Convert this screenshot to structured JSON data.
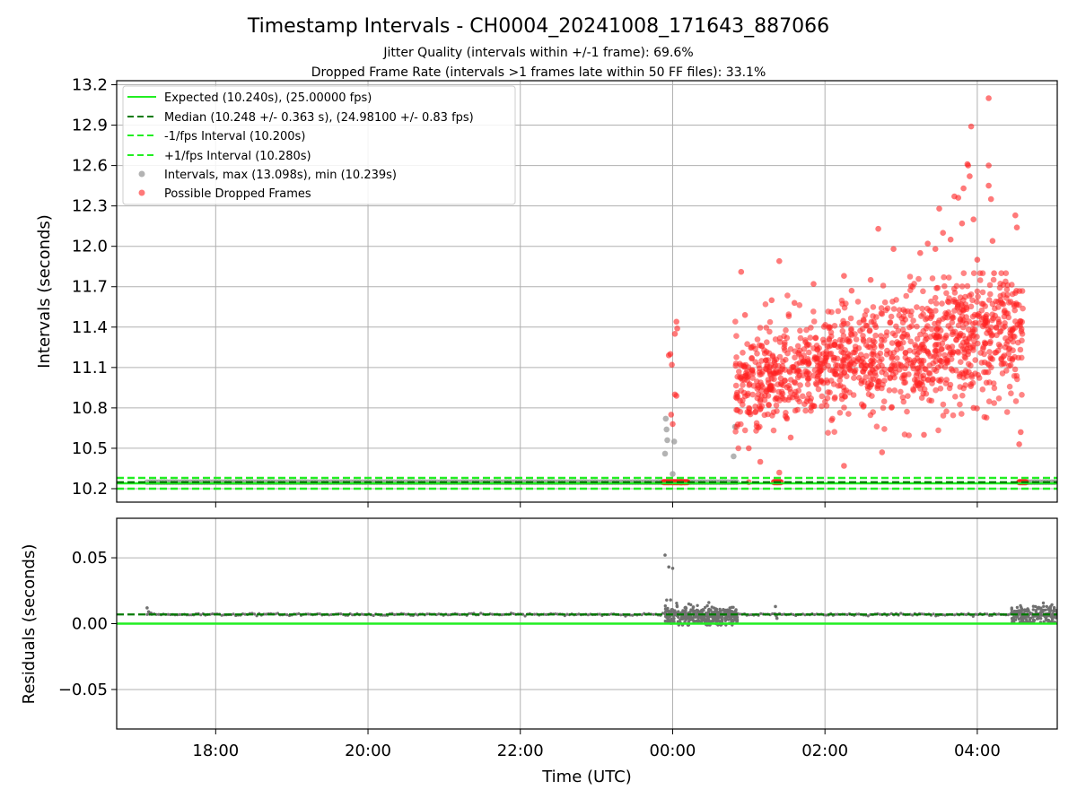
{
  "title": "Timestamp Intervals - CH0004_20241008_171643_887066",
  "subtitle_1": "Jitter Quality (intervals within +/-1 frame): 69.6%",
  "subtitle_2": "Dropped Frame Rate (intervals >1 frames late within 50 FF files): 33.1%",
  "colors": {
    "expected": "#22ee22",
    "median": "#007a00",
    "bound": "#22ee22",
    "interval": "#9a9a9a",
    "dropped": "#ff2020",
    "residual": "#707070"
  },
  "chart_data": [
    {
      "type": "scatter",
      "ylabel": "Intervals (seconds)",
      "xlim_hours": [
        -7.3,
        5.05
      ],
      "ylim": [
        10.1,
        13.23
      ],
      "yticks": [
        "10.2",
        "10.5",
        "10.8",
        "11.1",
        "11.4",
        "11.7",
        "12.0",
        "12.3",
        "12.6",
        "12.9",
        "13.2"
      ],
      "grid": true,
      "legend_position": "top-left",
      "legend": [
        "Expected (10.240s), (25.00000 fps)",
        "Median (10.248 +/- 0.363 s), (24.98100 +/- 0.83 fps)",
        "-1/fps Interval (10.200s)",
        "+1/fps Interval (10.280s)",
        "Intervals, max (13.098s), min (10.239s)",
        "Possible Dropped Frames"
      ],
      "reference_lines": {
        "expected": 10.24,
        "median": 10.248,
        "lower": 10.2,
        "upper": 10.28
      },
      "series": [
        {
          "name": "Intervals, max (13.098s), min (10.239s)",
          "note_x_hours": "hours relative to 00:00 UTC",
          "segments": [
            {
              "x_start": -6.9,
              "x_end": -0.12,
              "y": 10.248
            },
            {
              "x_start": 0.2,
              "x_end": 0.85,
              "y": 10.248
            },
            {
              "x_start": 4.6,
              "x_end": 5.05,
              "y": 10.248
            }
          ],
          "points": [
            {
              "x": -0.09,
              "y": 10.72
            },
            {
              "x": -0.08,
              "y": 10.64
            },
            {
              "x": -0.07,
              "y": 10.56
            },
            {
              "x": -0.1,
              "y": 10.46
            },
            {
              "x": 0.0,
              "y": 10.31
            },
            {
              "x": 0.02,
              "y": 10.55
            },
            {
              "x": 0.8,
              "y": 10.44
            },
            {
              "x": 0.82,
              "y": 10.66
            }
          ]
        },
        {
          "name": "Possible Dropped Frames",
          "points": [
            {
              "x": -0.05,
              "y": 11.19
            },
            {
              "x": -0.03,
              "y": 11.2
            },
            {
              "x": -0.01,
              "y": 11.12
            },
            {
              "x": 0.03,
              "y": 11.35
            },
            {
              "x": 0.05,
              "y": 11.44
            },
            {
              "x": 0.06,
              "y": 11.39
            },
            {
              "x": 0.03,
              "y": 10.9
            },
            {
              "x": 0.05,
              "y": 10.89
            },
            {
              "x": -0.02,
              "y": 10.75
            },
            {
              "x": 0.0,
              "y": 10.68
            },
            {
              "x": 0.9,
              "y": 11.81
            },
            {
              "x": 0.95,
              "y": 11.49
            },
            {
              "x": 1.3,
              "y": 11.6
            },
            {
              "x": 1.4,
              "y": 11.89
            },
            {
              "x": 1.6,
              "y": 11.58
            },
            {
              "x": 1.85,
              "y": 11.72
            },
            {
              "x": 2.25,
              "y": 11.78
            },
            {
              "x": 2.35,
              "y": 11.67
            },
            {
              "x": 2.6,
              "y": 11.75
            },
            {
              "x": 2.7,
              "y": 12.13
            },
            {
              "x": 2.9,
              "y": 11.98
            },
            {
              "x": 3.25,
              "y": 11.95
            },
            {
              "x": 3.35,
              "y": 12.02
            },
            {
              "x": 3.45,
              "y": 11.98
            },
            {
              "x": 3.5,
              "y": 12.28
            },
            {
              "x": 3.55,
              "y": 12.1
            },
            {
              "x": 3.65,
              "y": 12.05
            },
            {
              "x": 3.7,
              "y": 12.37
            },
            {
              "x": 3.75,
              "y": 12.36
            },
            {
              "x": 3.8,
              "y": 12.17
            },
            {
              "x": 3.82,
              "y": 12.43
            },
            {
              "x": 3.87,
              "y": 12.61
            },
            {
              "x": 3.88,
              "y": 12.6
            },
            {
              "x": 3.9,
              "y": 12.52
            },
            {
              "x": 3.92,
              "y": 12.89
            },
            {
              "x": 3.95,
              "y": 12.2
            },
            {
              "x": 4.0,
              "y": 11.9
            },
            {
              "x": 4.15,
              "y": 13.1
            },
            {
              "x": 4.15,
              "y": 12.6
            },
            {
              "x": 4.15,
              "y": 12.45
            },
            {
              "x": 4.18,
              "y": 12.35
            },
            {
              "x": 4.2,
              "y": 12.04
            },
            {
              "x": 4.22,
              "y": 11.8
            },
            {
              "x": 4.5,
              "y": 12.23
            },
            {
              "x": 4.52,
              "y": 12.14
            },
            {
              "x": 4.55,
              "y": 10.53
            },
            {
              "x": 4.57,
              "y": 10.62
            },
            {
              "x": 3.3,
              "y": 10.6
            },
            {
              "x": 3.95,
              "y": 10.8
            },
            {
              "x": 1.15,
              "y": 10.4
            },
            {
              "x": 1.4,
              "y": 10.32
            },
            {
              "x": 2.25,
              "y": 10.37
            },
            {
              "x": 2.75,
              "y": 10.47
            },
            {
              "x": 1.0,
              "y": 10.5
            },
            {
              "x": 1.55,
              "y": 10.58
            },
            {
              "x": 1.0,
              "y": 10.248
            },
            {
              "x": 1.37,
              "y": 10.248
            },
            {
              "x": 1.38,
              "y": 10.248
            },
            {
              "x": -0.06,
              "y": 10.248
            },
            {
              "x": 0.05,
              "y": 10.248
            },
            {
              "x": 0.12,
              "y": 10.248
            },
            {
              "x": 0.2,
              "y": 10.248
            },
            {
              "x": 4.58,
              "y": 10.248
            },
            {
              "x": 4.6,
              "y": 10.248
            },
            {
              "x": 4.62,
              "y": 10.248
            }
          ],
          "dense_cluster": {
            "x_start": 0.82,
            "x_end": 4.6,
            "y_min": 10.5,
            "y_max": 11.75,
            "approx_points": 1200
          }
        }
      ]
    },
    {
      "type": "scatter",
      "ylabel": "Residuals (seconds)",
      "xlabel": "Time (UTC)",
      "xlim_hours": [
        -7.3,
        5.05
      ],
      "ylim": [
        -0.08,
        0.08
      ],
      "yticks": [
        "−0.05",
        "0.00",
        "0.05"
      ],
      "xticks": [
        "18:00",
        "20:00",
        "22:00",
        "00:00",
        "02:00",
        "04:00"
      ],
      "xticks_hours": [
        -6,
        -4,
        -2,
        0,
        2,
        4
      ],
      "grid": true,
      "reference_lines": {
        "zero": 0.0,
        "median_offset": 0.007
      },
      "series": [
        {
          "name": "Residuals",
          "points": [
            {
              "x": -6.9,
              "y": 0.012
            },
            {
              "x": -6.88,
              "y": 0.009
            },
            {
              "x": -6.85,
              "y": 0.008
            },
            {
              "x": -0.1,
              "y": 0.052
            },
            {
              "x": -0.05,
              "y": 0.043
            },
            {
              "x": 0.0,
              "y": 0.042
            },
            {
              "x": 1.35,
              "y": 0.013
            },
            {
              "x": 1.36,
              "y": 0.006
            },
            {
              "x": 1.37,
              "y": 0.004
            }
          ],
          "baseline": {
            "x_start": -6.9,
            "x_end": 5.05,
            "y": 0.007
          },
          "clusters": [
            {
              "x_start": -0.1,
              "x_end": 0.85,
              "y_min": -0.001,
              "y_max": 0.018,
              "approx_points": 360
            },
            {
              "x_start": 4.45,
              "x_end": 5.05,
              "y_min": 0.001,
              "y_max": 0.016,
              "approx_points": 180
            }
          ]
        }
      ]
    }
  ]
}
